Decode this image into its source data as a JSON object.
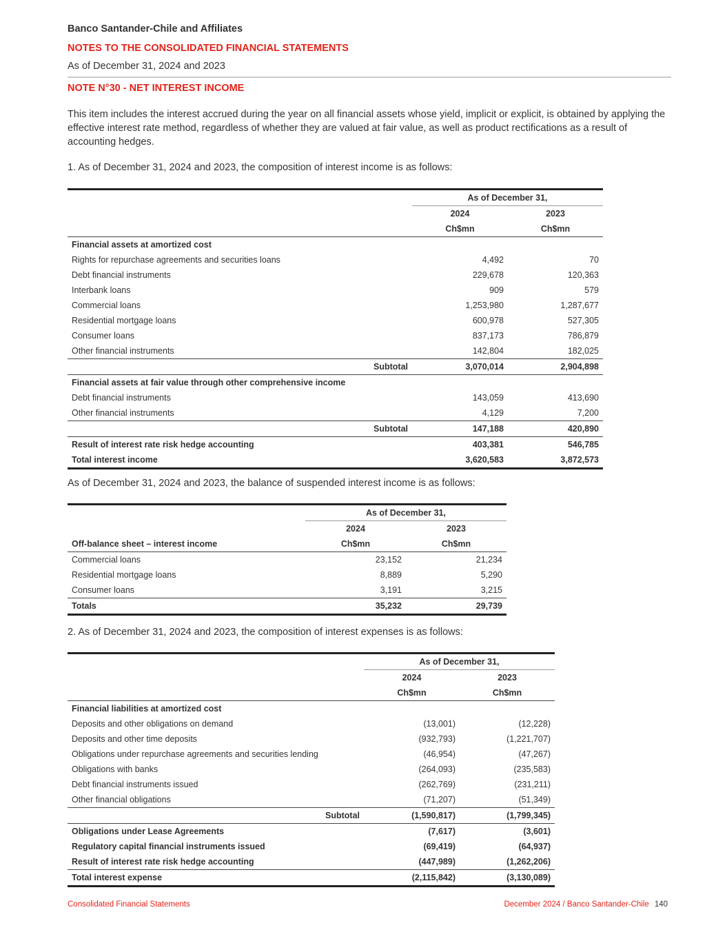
{
  "header": {
    "company": "Banco Santander-Chile and Affiliates",
    "section": "NOTES TO THE CONSOLIDATED FINANCIAL STATEMENTS",
    "period": "As of December 31, 2024 and 2023",
    "note_title": "NOTE N°30 - NET INTEREST INCOME"
  },
  "intro": "This item includes the interest accrued during the year on all financial assets whose yield, implicit or explicit, is obtained by applying the effective interest rate method, regardless of whether they are valued at fair value, as well as product rectifications as a result of accounting hedges.",
  "colors": {
    "accent": "#e2231a"
  },
  "table1": {
    "caption": "1.  As of December 31, 2024 and 2023, the composition of interest income is as follows:",
    "group_header": "As of December 31,",
    "label_header": "",
    "years": [
      "2024",
      "2023"
    ],
    "units": [
      "Ch$mn",
      "Ch$mn"
    ],
    "rows": [
      {
        "kind": "section",
        "label": "Financial assets at amortized cost",
        "v": [
          "",
          ""
        ]
      },
      {
        "kind": "item",
        "label": "Rights for repurchase agreements and securities loans",
        "v": [
          "4,492",
          "70"
        ]
      },
      {
        "kind": "item",
        "label": "Debt financial instruments",
        "v": [
          "229,678",
          "120,363"
        ]
      },
      {
        "kind": "item",
        "label": "Interbank loans",
        "v": [
          "909",
          "579"
        ]
      },
      {
        "kind": "item",
        "label": "Commercial loans",
        "v": [
          "1,253,980",
          "1,287,677"
        ]
      },
      {
        "kind": "item",
        "label": "Residential mortgage loans",
        "v": [
          "600,978",
          "527,305"
        ]
      },
      {
        "kind": "item",
        "label": "Consumer loans",
        "v": [
          "837,173",
          "786,879"
        ]
      },
      {
        "kind": "item",
        "label": "Other financial instruments",
        "v": [
          "142,804",
          "182,025"
        ]
      },
      {
        "kind": "subtotal",
        "ruled": true,
        "label": "Subtotal",
        "v": [
          "3,070,014",
          "2,904,898"
        ]
      },
      {
        "kind": "section",
        "ruled": true,
        "label": "Financial assets at fair value through other comprehensive income",
        "v": [
          "",
          ""
        ]
      },
      {
        "kind": "item",
        "label": "Debt financial instruments",
        "v": [
          "143,059",
          "413,690"
        ]
      },
      {
        "kind": "item",
        "label": "Other financial instruments",
        "v": [
          "4,129",
          "7,200"
        ]
      },
      {
        "kind": "subtotal",
        "ruled": true,
        "label": "Subtotal",
        "v": [
          "147,188",
          "420,890"
        ]
      },
      {
        "kind": "bold",
        "ruled": true,
        "label": "Result of interest rate risk hedge accounting",
        "v": [
          "403,381",
          "546,785"
        ]
      },
      {
        "kind": "total",
        "label": "Total interest income",
        "v": [
          "3,620,583",
          "3,872,573"
        ]
      }
    ]
  },
  "table2": {
    "caption": "As of December 31, 2024 and 2023, the balance of suspended interest income is as follows:",
    "group_header": "As of December 31,",
    "label_header": "Off-balance sheet – interest income",
    "years": [
      "2024",
      "2023"
    ],
    "units": [
      "Ch$mn",
      "Ch$mn"
    ],
    "rows": [
      {
        "kind": "item",
        "label": "Commercial loans",
        "v": [
          "23,152",
          "21,234"
        ]
      },
      {
        "kind": "item",
        "label": "Residential mortgage loans",
        "v": [
          "8,889",
          "5,290"
        ]
      },
      {
        "kind": "item",
        "label": "Consumer loans",
        "v": [
          "3,191",
          "3,215"
        ]
      },
      {
        "kind": "total",
        "ruled": true,
        "label": "Totals",
        "v": [
          "35,232",
          "29,739"
        ]
      }
    ]
  },
  "table3": {
    "caption": "2.  As of December 31, 2024 and 2023, the composition of interest expenses is as follows:",
    "group_header": "As of December 31,",
    "label_header": "",
    "years": [
      "2024",
      "2023"
    ],
    "units": [
      "Ch$mn",
      "Ch$mn"
    ],
    "rows": [
      {
        "kind": "section",
        "label": "Financial liabilities at amortized cost",
        "v": [
          "",
          ""
        ]
      },
      {
        "kind": "item",
        "label": "Deposits and other obligations on demand",
        "v": [
          "(13,001)",
          "(12,228)"
        ]
      },
      {
        "kind": "item",
        "label": "Deposits and other time deposits",
        "v": [
          "(932,793)",
          "(1,221,707)"
        ]
      },
      {
        "kind": "item",
        "label": "Obligations under repurchase agreements and securities lending",
        "v": [
          "(46,954)",
          "(47,267)"
        ]
      },
      {
        "kind": "item",
        "label": "Obligations with banks",
        "v": [
          "(264,093)",
          "(235,583)"
        ]
      },
      {
        "kind": "item",
        "label": "Debt financial instruments issued",
        "v": [
          "(262,769)",
          "(231,211)"
        ]
      },
      {
        "kind": "item",
        "label": "Other financial obligations",
        "v": [
          "(71,207)",
          "(51,349)"
        ]
      },
      {
        "kind": "subtotal",
        "ruled": true,
        "label": "Subtotal",
        "v": [
          "(1,590,817)",
          "(1,799,345)"
        ]
      },
      {
        "kind": "bold",
        "ruled": true,
        "label": "Obligations under Lease Agreements",
        "v": [
          "(7,617)",
          "(3,601)"
        ]
      },
      {
        "kind": "bold",
        "label": "Regulatory capital financial instruments issued",
        "v": [
          "(69,419)",
          "(64,937)"
        ]
      },
      {
        "kind": "bold",
        "label": "Result of interest rate risk hedge accounting",
        "v": [
          "(447,989)",
          "(1,262,206)"
        ]
      },
      {
        "kind": "total",
        "ruled": true,
        "label": "Total interest expense",
        "v": [
          "(2,115,842)",
          "(3,130,089)"
        ]
      }
    ]
  },
  "footer": {
    "left": "Consolidated Financial Statements",
    "right": "December 2024 / Banco Santander-Chile",
    "page": "140"
  }
}
